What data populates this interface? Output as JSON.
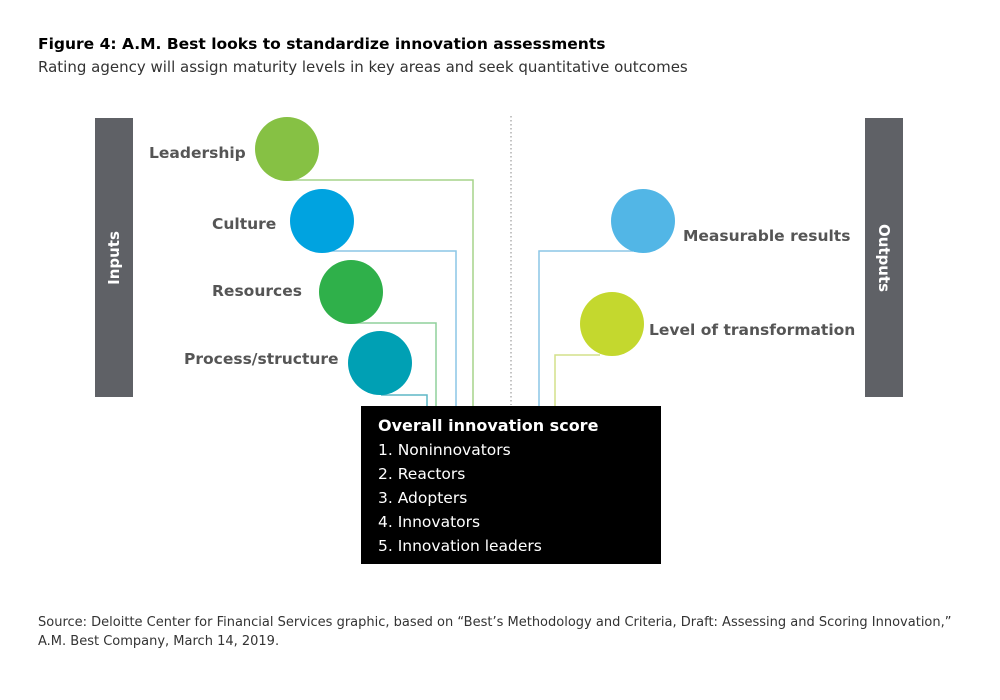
{
  "title": "Figure 4: A.M. Best looks to standardize innovation assessments",
  "subtitle": "Rating agency will assign maturity levels in key areas and seek quantitative outcomes",
  "inputs_label": "Inputs",
  "outputs_label": "Outputs",
  "inputs": [
    {
      "label": "Leadership",
      "color": "#86c144"
    },
    {
      "label": "Culture",
      "color": "#00a3e0"
    },
    {
      "label": "Resources",
      "color": "#2fb04a"
    },
    {
      "label": "Process/structure",
      "color": "#00a0b4"
    }
  ],
  "outputs": [
    {
      "label": "Measurable results",
      "color": "#52b6e6"
    },
    {
      "label": "Level of transformation",
      "color": "#c4d82e"
    }
  ],
  "score_box": {
    "heading": "Overall innovation score",
    "items": [
      "1. Noninnovators",
      "2. Reactors",
      "3. Adopters",
      "4. Innovators",
      "5. Innovation leaders"
    ]
  },
  "source": {
    "line1": "Source: Deloitte Center for Financial Services graphic, based on “Best’s Methodology and Criteria, Draft: Assessing and Scoring Innovation,”",
    "line2": "A.M. Best Company, March 14, 2019."
  }
}
